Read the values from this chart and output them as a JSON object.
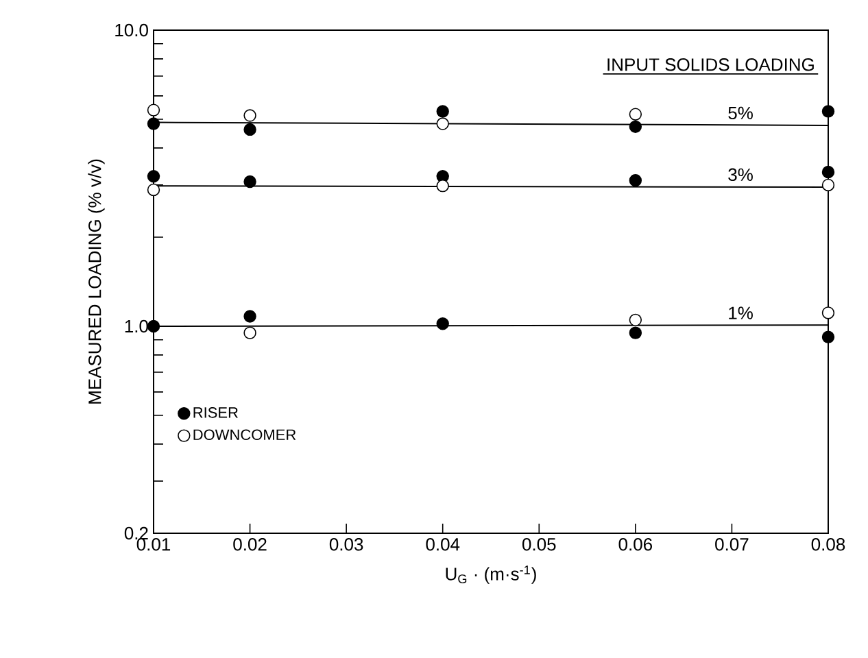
{
  "chart_data": {
    "type": "scatter",
    "xlabel": "U$_{G}$ · (m·s$^{-1}$)",
    "ylabel": "MEASURED LOADING (% v/v)",
    "log": "y",
    "xlim": [
      0.01,
      0.08
    ],
    "ylim": [
      0.2,
      10
    ],
    "xticks": [
      0.01,
      0.02,
      0.03,
      0.04,
      0.05,
      0.06,
      0.07,
      0.08
    ],
    "yticks": [
      {
        "value": 0.2,
        "label": "0.2"
      },
      {
        "value": 0.3,
        "label": null
      },
      {
        "value": 0.4,
        "label": null
      },
      {
        "value": 0.5,
        "label": null
      },
      {
        "value": 0.6,
        "label": null
      },
      {
        "value": 0.7,
        "label": null
      },
      {
        "value": 0.8,
        "label": null
      },
      {
        "value": 0.9,
        "label": null
      },
      {
        "value": 1,
        "label": "1.0"
      },
      {
        "value": 2,
        "label": null
      },
      {
        "value": 3,
        "label": null
      },
      {
        "value": 4,
        "label": null
      },
      {
        "value": 5,
        "label": null
      },
      {
        "value": 6,
        "label": null
      },
      {
        "value": 7,
        "label": null
      },
      {
        "value": 8,
        "label": null
      },
      {
        "value": 9,
        "label": null
      },
      {
        "value": 10,
        "label": "10.0"
      }
    ],
    "legend": "bottom left",
    "marker": "circle",
    "series": [
      {
        "name": "RISER",
        "color": "#000000",
        "x": [
          0.01,
          0.02,
          0.04,
          0.06,
          0.08,
          0.01,
          0.02,
          0.04,
          0.06,
          0.08,
          0.01,
          0.02,
          0.04,
          0.06,
          0.08
        ],
        "values": [
          4.83,
          4.62,
          5.32,
          4.72,
          5.32,
          3.21,
          3.08,
          3.21,
          3.11,
          3.32,
          1.0,
          1.08,
          1.02,
          0.95,
          0.92
        ]
      },
      {
        "name": "DOWNCOMER",
        "color": "#ffffff",
        "x": [
          0.01,
          0.02,
          0.04,
          0.06,
          0.01,
          0.04,
          0.08,
          0.02,
          0.06,
          0.08
        ],
        "values": [
          5.37,
          5.15,
          4.83,
          5.2,
          2.89,
          2.98,
          3.0,
          0.95,
          1.05,
          1.11
        ]
      },
      {
        "type": "line",
        "marker": "none",
        "line_style": "solid",
        "color": "#000000",
        "x": [
          0.01,
          0.08
        ],
        "values": [
          4.88,
          4.77
        ]
      },
      {
        "type": "line",
        "marker": "none",
        "line_style": "solid",
        "color": "#000000",
        "x": [
          0.01,
          0.08
        ],
        "values": [
          2.98,
          2.95
        ]
      },
      {
        "type": "line",
        "marker": "none",
        "line_style": "solid",
        "color": "#000000",
        "x": [
          0.01,
          0.08
        ],
        "values": [
          1.0,
          1.01
        ]
      }
    ],
    "annotations": [
      "INPUT SOLIDS LOADING",
      {
        "text": "5%",
        "y": 4.78
      },
      {
        "text": "3%",
        "y": 2.96
      },
      {
        "text": "1%",
        "y": 1.01
      }
    ]
  }
}
